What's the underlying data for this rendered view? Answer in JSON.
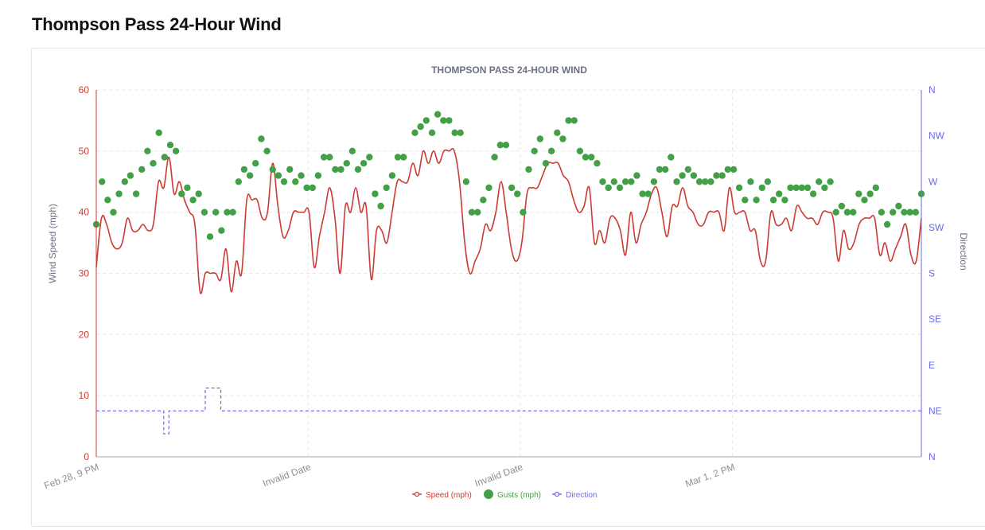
{
  "page": {
    "title": "Thompson Pass 24-Hour Wind"
  },
  "chart_data": {
    "type": "line",
    "title": "THOMPSON PASS 24-HOUR WIND",
    "xlabel": "",
    "ylabel": "Wind Speed (mph)",
    "y2label": "Direction",
    "ylim": [
      0,
      60
    ],
    "yticks": [
      0,
      10,
      20,
      30,
      40,
      50,
      60
    ],
    "y2_ticks": [
      "N",
      "NE",
      "E",
      "SE",
      "S",
      "SW",
      "W",
      "NW",
      "N"
    ],
    "x_tick_labels": [
      "Feb 28, 9 PM",
      "Invalid Date",
      "Invalid Date",
      "Mar 1, 2 PM"
    ],
    "grid": true,
    "legend_position": "bottom-center",
    "colors": {
      "speed": "#cc3b33",
      "gusts": "#43a047",
      "direction": "#6a6aeb",
      "axis_left": "#cc3b33",
      "axis_right": "#6a6aeb",
      "title": "#6b7280",
      "grid": "#e5e7eb"
    },
    "series": [
      {
        "name": "Speed (mph)",
        "values": [
          31,
          39,
          38,
          35,
          34,
          35,
          39,
          37,
          37,
          38,
          37,
          38,
          45,
          44,
          49,
          43,
          45,
          42,
          40,
          38,
          27,
          30,
          30,
          30,
          29,
          34,
          27,
          32,
          30,
          42,
          42,
          42,
          39,
          40,
          48,
          41,
          36,
          37,
          40,
          40,
          40,
          40,
          31,
          36,
          40,
          44,
          39,
          30,
          41,
          40,
          44,
          40,
          41,
          29,
          37,
          37,
          35,
          40,
          45,
          45,
          45,
          48,
          46,
          50,
          48,
          50,
          48,
          50,
          50,
          50,
          45,
          35,
          30,
          32,
          34,
          38,
          37,
          40,
          45,
          40,
          34,
          32,
          35,
          43,
          44,
          44,
          46,
          48,
          48,
          48,
          46,
          45,
          42,
          40,
          41,
          44,
          35,
          37,
          35,
          39,
          39,
          37,
          33,
          40,
          35,
          38,
          40,
          43,
          44,
          40,
          36,
          41,
          41,
          44,
          41,
          40,
          38,
          38,
          40,
          40,
          40,
          37,
          44,
          40,
          40,
          40,
          37,
          37,
          32,
          32,
          40,
          38,
          38,
          39,
          37,
          41,
          40,
          39,
          39,
          38,
          40,
          40,
          39,
          32,
          37,
          34,
          35,
          38,
          39,
          39,
          39,
          33,
          35,
          32,
          34,
          36,
          38,
          33,
          32,
          39
        ],
        "description": "Speed (mph)"
      },
      {
        "name": "Gusts (mph)",
        "values": [
          38,
          45,
          42,
          40,
          43,
          45,
          46,
          43,
          47,
          50,
          48,
          53,
          49,
          51,
          50,
          43,
          44,
          42,
          43,
          40,
          36,
          40,
          37,
          40,
          40,
          45,
          47,
          46,
          48,
          52,
          50,
          47,
          46,
          45,
          47,
          45,
          46,
          44,
          44,
          46,
          49,
          49,
          47,
          47,
          48,
          50,
          47,
          48,
          49,
          43,
          41,
          44,
          46,
          49,
          49,
          null,
          53,
          54,
          55,
          53,
          56,
          55,
          55,
          53,
          53,
          45,
          40,
          40,
          42,
          44,
          49,
          51,
          51,
          44,
          43,
          40,
          47,
          50,
          52,
          48,
          50,
          53,
          52,
          55,
          55,
          50,
          49,
          49,
          48,
          45,
          44,
          45,
          44,
          45,
          45,
          46,
          43,
          43,
          45,
          47,
          47,
          49,
          45,
          46,
          47,
          46,
          45,
          45,
          45,
          46,
          46,
          47,
          47,
          44,
          42,
          45,
          42,
          44,
          45,
          42,
          43,
          42,
          44,
          44,
          44,
          44,
          43,
          45,
          44,
          45,
          40,
          41,
          40,
          40,
          43,
          42,
          43,
          44,
          40,
          38,
          40,
          41,
          40,
          40,
          40,
          43
        ]
      },
      {
        "name": "Direction",
        "steps": [
          {
            "from_index": 0,
            "to_index": 13,
            "direction": "NE"
          },
          {
            "from_index": 13,
            "to_index": 14,
            "direction": "NNE"
          },
          {
            "from_index": 14,
            "to_index": 21,
            "direction": "NE"
          },
          {
            "from_index": 21,
            "to_index": 24,
            "direction": "ENE"
          },
          {
            "from_index": 24,
            "to_index": 160,
            "direction": "NE"
          }
        ]
      }
    ]
  }
}
